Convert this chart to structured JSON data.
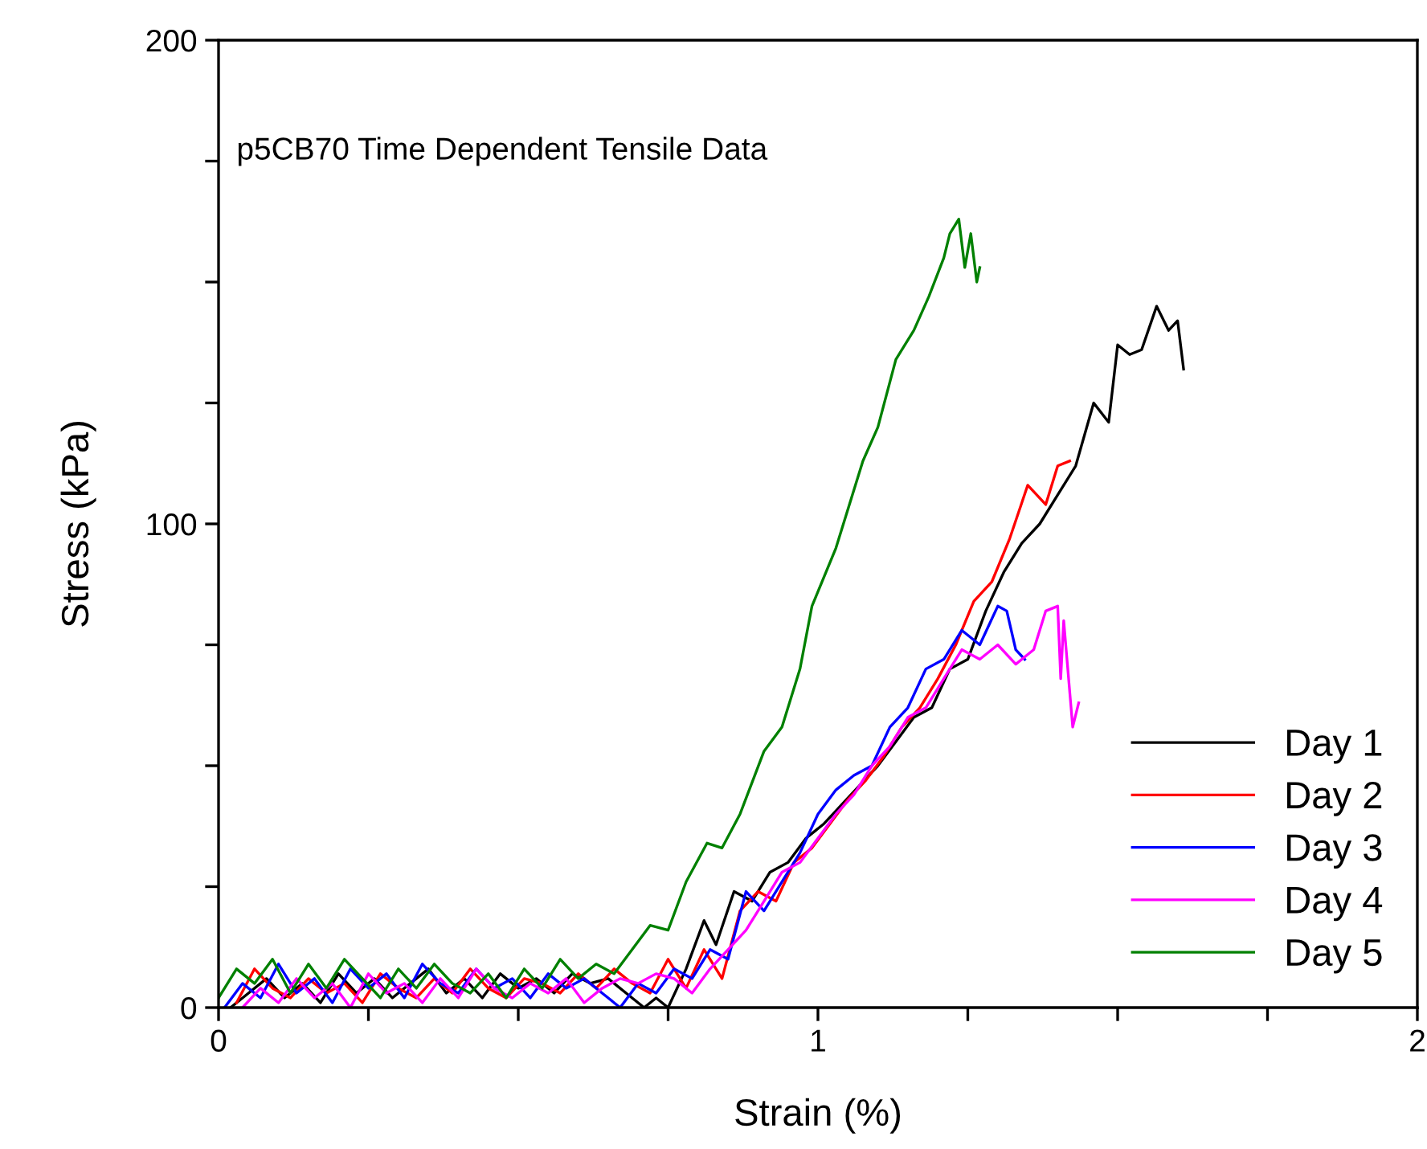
{
  "chart_data": {
    "type": "line",
    "xlabel": "Strain (%)",
    "ylabel": "Stress (kPa)",
    "annotations": [
      "p5CB70 Time Dependent Tensile Data"
    ],
    "xlim": [
      0,
      2
    ],
    "ylim": [
      0,
      200
    ],
    "xticks": [
      0,
      {
        "value": 0.25,
        "label": null
      },
      {
        "value": 0.5,
        "label": null
      },
      {
        "value": 0.75,
        "label": null
      },
      1,
      {
        "value": 1.25,
        "label": null
      },
      {
        "value": 1.5,
        "label": null
      },
      {
        "value": 1.75,
        "label": null
      },
      2
    ],
    "yticks": [
      0,
      {
        "value": 25,
        "label": null
      },
      {
        "value": 50,
        "label": null
      },
      {
        "value": 75,
        "label": null
      },
      100,
      {
        "value": 125,
        "label": null
      },
      {
        "value": 150,
        "label": null
      },
      {
        "value": 175,
        "label": null
      },
      200
    ],
    "legend": "bottom right",
    "grid": false,
    "marker": "none",
    "line_style": "solid",
    "series": [
      {
        "name": "Day 1",
        "color": "#000000",
        "x": [
          0.02,
          0.05,
          0.08,
          0.11,
          0.14,
          0.17,
          0.2,
          0.23,
          0.26,
          0.29,
          0.32,
          0.35,
          0.38,
          0.41,
          0.44,
          0.47,
          0.5,
          0.53,
          0.56,
          0.59,
          0.62,
          0.65,
          0.68,
          0.71,
          0.73,
          0.75,
          0.78,
          0.81,
          0.83,
          0.86,
          0.89,
          0.92,
          0.95,
          0.98,
          1.01,
          1.04,
          1.07,
          1.1,
          1.13,
          1.16,
          1.19,
          1.22,
          1.25,
          1.28,
          1.31,
          1.34,
          1.37,
          1.4,
          1.43,
          1.46,
          1.485,
          1.5,
          1.52,
          1.54,
          1.565,
          1.585,
          1.6,
          1.61
        ],
        "values": [
          0,
          3,
          6,
          2,
          5,
          1,
          7,
          3,
          6,
          2,
          5,
          8,
          3,
          6,
          2,
          7,
          4,
          6,
          3,
          7,
          5,
          6,
          3,
          0,
          2,
          0,
          8,
          18,
          13,
          24,
          22,
          28,
          30,
          35,
          38,
          42,
          46,
          50,
          55,
          60,
          62,
          70,
          72,
          82,
          90,
          96,
          100,
          106,
          112,
          125,
          121,
          137,
          135,
          136,
          145,
          140,
          142,
          132
        ]
      },
      {
        "name": "Day 2",
        "color": "#ff0000",
        "x": [
          0.03,
          0.06,
          0.09,
          0.12,
          0.15,
          0.18,
          0.21,
          0.24,
          0.27,
          0.3,
          0.33,
          0.36,
          0.39,
          0.42,
          0.45,
          0.48,
          0.51,
          0.54,
          0.57,
          0.6,
          0.63,
          0.66,
          0.69,
          0.72,
          0.75,
          0.78,
          0.81,
          0.84,
          0.87,
          0.9,
          0.93,
          0.96,
          0.99,
          1.02,
          1.05,
          1.08,
          1.11,
          1.14,
          1.17,
          1.2,
          1.23,
          1.26,
          1.29,
          1.32,
          1.35,
          1.38,
          1.4,
          1.42
        ],
        "values": [
          1,
          8,
          4,
          2,
          6,
          3,
          5,
          1,
          7,
          4,
          2,
          6,
          3,
          8,
          4,
          2,
          6,
          5,
          3,
          7,
          4,
          8,
          5,
          3,
          10,
          4,
          12,
          6,
          20,
          24,
          22,
          30,
          33,
          38,
          43,
          47,
          52,
          58,
          62,
          68,
          75,
          84,
          88,
          97,
          108,
          104,
          112,
          113
        ]
      },
      {
        "name": "Day 3",
        "color": "#0000ff",
        "x": [
          0.01,
          0.04,
          0.07,
          0.1,
          0.13,
          0.16,
          0.19,
          0.22,
          0.25,
          0.28,
          0.31,
          0.34,
          0.37,
          0.4,
          0.43,
          0.46,
          0.49,
          0.52,
          0.55,
          0.58,
          0.61,
          0.64,
          0.67,
          0.7,
          0.73,
          0.76,
          0.79,
          0.82,
          0.85,
          0.88,
          0.91,
          0.94,
          0.97,
          1.0,
          1.03,
          1.06,
          1.09,
          1.12,
          1.15,
          1.18,
          1.21,
          1.24,
          1.27,
          1.3,
          1.315,
          1.33,
          1.345
        ],
        "values": [
          0,
          5,
          2,
          9,
          3,
          6,
          1,
          8,
          4,
          7,
          2,
          9,
          5,
          3,
          8,
          4,
          6,
          2,
          7,
          4,
          6,
          3,
          0,
          5,
          3,
          8,
          6,
          12,
          10,
          24,
          20,
          26,
          32,
          40,
          45,
          48,
          50,
          58,
          62,
          70,
          72,
          78,
          75,
          83,
          82,
          74,
          72
        ]
      },
      {
        "name": "Day 4",
        "color": "#ff00ff",
        "x": [
          0.04,
          0.07,
          0.1,
          0.13,
          0.16,
          0.19,
          0.22,
          0.25,
          0.28,
          0.31,
          0.34,
          0.37,
          0.4,
          0.43,
          0.46,
          0.49,
          0.52,
          0.55,
          0.58,
          0.61,
          0.64,
          0.67,
          0.7,
          0.73,
          0.76,
          0.79,
          0.82,
          0.85,
          0.88,
          0.91,
          0.94,
          0.97,
          1.0,
          1.03,
          1.06,
          1.09,
          1.12,
          1.15,
          1.18,
          1.21,
          1.24,
          1.27,
          1.3,
          1.33,
          1.36,
          1.38,
          1.4,
          1.405,
          1.41,
          1.425,
          1.435
        ],
        "values": [
          0,
          4,
          1,
          6,
          2,
          5,
          0,
          7,
          3,
          5,
          1,
          6,
          2,
          8,
          4,
          2,
          5,
          3,
          6,
          1,
          4,
          6,
          5,
          7,
          6,
          3,
          8,
          12,
          16,
          22,
          28,
          30,
          35,
          40,
          44,
          50,
          54,
          60,
          62,
          68,
          74,
          72,
          75,
          71,
          74,
          82,
          83,
          68,
          80,
          58,
          63
        ]
      },
      {
        "name": "Day 5",
        "color": "#008000",
        "x": [
          0,
          0.03,
          0.06,
          0.09,
          0.12,
          0.15,
          0.18,
          0.21,
          0.24,
          0.27,
          0.3,
          0.33,
          0.36,
          0.39,
          0.42,
          0.45,
          0.48,
          0.51,
          0.54,
          0.57,
          0.6,
          0.63,
          0.66,
          0.69,
          0.72,
          0.75,
          0.78,
          0.815,
          0.84,
          0.87,
          0.91,
          0.94,
          0.97,
          0.99,
          1.03,
          1.075,
          1.1,
          1.13,
          1.16,
          1.185,
          1.21,
          1.22,
          1.235,
          1.245,
          1.255,
          1.265,
          1.27
        ],
        "values": [
          2,
          8,
          5,
          10,
          3,
          9,
          4,
          10,
          6,
          2,
          8,
          4,
          9,
          5,
          3,
          7,
          2,
          8,
          4,
          10,
          6,
          9,
          7,
          12,
          17,
          16,
          26,
          34,
          33,
          40,
          53,
          58,
          70,
          83,
          95,
          113,
          120,
          134,
          140,
          147,
          155,
          160,
          163,
          153,
          160,
          150,
          153
        ]
      }
    ]
  }
}
